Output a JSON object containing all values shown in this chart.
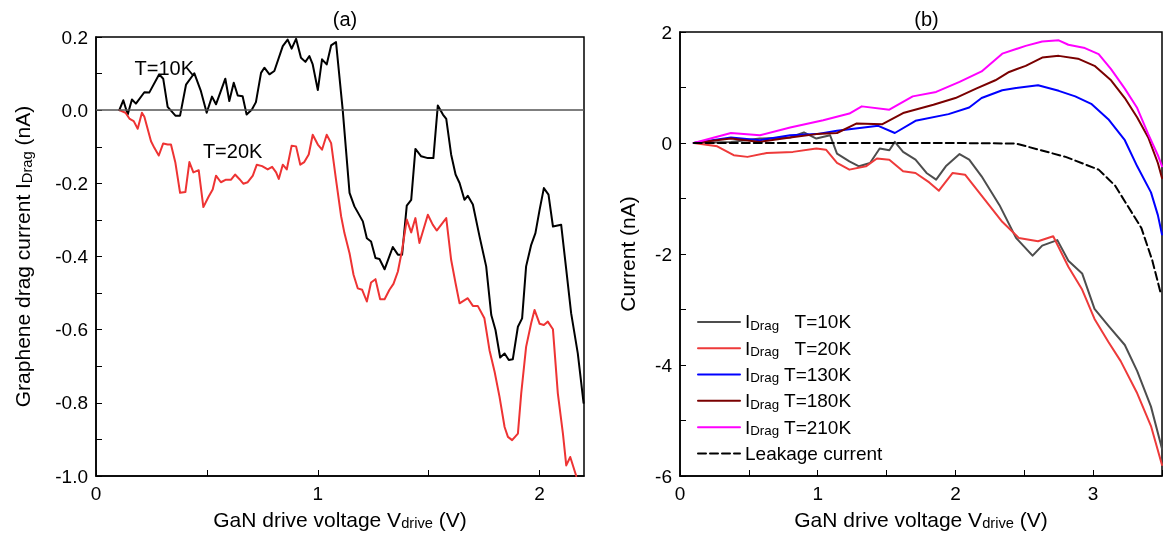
{
  "chart_data": [
    {
      "type": "line",
      "title": "(a)",
      "xlabel": "GaN drive voltage V$_{drive}$ (V)",
      "ylabel": "Graphene drag current I$_{Drag}$ (nA)",
      "xlim": [
        0,
        2.2
      ],
      "xticks": [
        0,
        {
          "value": 0.5,
          "label": null
        },
        1,
        {
          "value": 1.5,
          "label": null
        },
        2
      ],
      "ylim": [
        -1,
        0.2
      ],
      "yticks": [
        {
          "value": -1,
          "label": "-1.0"
        },
        {
          "value": -0.9,
          "label": null
        },
        -0.8,
        {
          "value": -0.7,
          "label": null
        },
        -0.6,
        {
          "value": -0.5,
          "label": null
        },
        -0.4,
        {
          "value": -0.3,
          "label": null
        },
        -0.2,
        {
          "value": -0.1,
          "label": null
        },
        {
          "value": 0,
          "label": "0.0"
        },
        {
          "value": 0.1,
          "label": null
        },
        0.2
      ],
      "grid": false,
      "marker": "none",
      "line_style": "solid",
      "ref_lines": [
        {
          "axis": "y",
          "value": 0,
          "color": "#555555"
        }
      ],
      "annotations": [
        "T=10K",
        "T=20K"
      ],
      "series": [
        {
          "color": "#000000",
          "x": [
            0.105,
            0.123,
            0.143,
            0.162,
            0.18,
            0.218,
            0.24,
            0.285,
            0.303,
            0.323,
            0.358,
            0.379,
            0.406,
            0.443,
            0.473,
            0.499,
            0.523,
            0.541,
            0.583,
            0.601,
            0.621,
            0.639,
            0.661,
            0.679,
            0.703,
            0.721,
            0.744,
            0.759,
            0.782,
            0.804,
            0.842,
            0.864,
            0.882,
            0.902,
            0.924,
            0.944,
            0.962,
            0.977,
            1.0,
            1.019,
            1.04,
            1.06,
            1.082,
            1.112,
            1.143,
            1.165,
            1.203,
            1.221,
            1.24,
            1.26,
            1.278,
            1.301,
            1.338,
            1.361,
            1.38,
            1.401,
            1.421,
            1.44,
            1.466,
            1.496,
            1.521,
            1.541,
            1.564,
            1.579,
            1.601,
            1.621,
            1.639,
            1.661,
            1.676,
            1.699,
            1.729,
            1.759,
            1.782,
            1.801,
            1.822,
            1.842,
            1.861,
            1.879,
            1.902,
            1.921,
            1.939,
            1.962,
            1.981,
            2.0,
            2.019,
            2.04,
            2.06,
            2.097,
            2.12,
            2.142,
            2.172,
            2.198
          ],
          "values": [
            0,
            0.027,
            -0.012,
            0.029,
            0.018,
            0.049,
            0.048,
            0.098,
            0.086,
            0.009,
            -0.015,
            -0.015,
            0.07,
            0.101,
            0.052,
            -0.007,
            0.037,
            0.016,
            0.086,
            0.025,
            0.075,
            0.04,
            0.038,
            -0.012,
            0.002,
            0.022,
            0.102,
            0.116,
            0.098,
            0.107,
            0.175,
            0.193,
            0.168,
            0.195,
            0.143,
            0.132,
            0.148,
            0.125,
            0.055,
            0.139,
            0.125,
            0.177,
            0.186,
            0.002,
            -0.226,
            -0.263,
            -0.304,
            -0.35,
            -0.359,
            -0.404,
            -0.407,
            -0.435,
            -0.374,
            -0.395,
            -0.395,
            -0.261,
            -0.245,
            -0.106,
            -0.126,
            -0.131,
            -0.131,
            0.013,
            -0.012,
            -0.024,
            -0.121,
            -0.176,
            -0.199,
            -0.245,
            -0.234,
            -0.258,
            -0.345,
            -0.427,
            -0.56,
            -0.601,
            -0.676,
            -0.665,
            -0.683,
            -0.681,
            -0.592,
            -0.569,
            -0.427,
            -0.368,
            -0.336,
            -0.272,
            -0.213,
            -0.231,
            -0.318,
            -0.313,
            -0.436,
            -0.555,
            -0.665,
            -0.8
          ]
        },
        {
          "color": "#ee3333",
          "x": [
            0.105,
            0.133,
            0.152,
            0.17,
            0.188,
            0.207,
            0.218,
            0.248,
            0.263,
            0.283,
            0.303,
            0.323,
            0.338,
            0.358,
            0.379,
            0.403,
            0.421,
            0.439,
            0.463,
            0.484,
            0.508,
            0.526,
            0.541,
            0.563,
            0.586,
            0.609,
            0.627,
            0.646,
            0.664,
            0.684,
            0.707,
            0.725,
            0.749,
            0.774,
            0.794,
            0.812,
            0.824,
            0.842,
            0.86,
            0.882,
            0.902,
            0.921,
            0.939,
            0.959,
            0.977,
            1.0,
            1.019,
            1.04,
            1.06,
            1.082,
            1.105,
            1.12,
            1.143,
            1.161,
            1.18,
            1.2,
            1.221,
            1.24,
            1.26,
            1.281,
            1.301,
            1.323,
            1.341,
            1.361,
            1.38,
            1.401,
            1.421,
            1.44,
            1.458,
            1.496,
            1.518,
            1.536,
            1.579,
            1.601,
            1.621,
            1.639,
            1.676,
            1.699,
            1.721,
            1.751,
            1.774,
            1.797,
            1.819,
            1.842,
            1.857,
            1.876,
            1.902,
            1.917,
            1.939,
            1.962,
            1.977,
            2.0,
            2.019,
            2.037,
            2.06,
            2.082,
            2.105,
            2.12,
            2.138,
            2.165
          ],
          "values": [
            0,
            -0.007,
            -0.024,
            -0.03,
            -0.051,
            -0.007,
            -0.018,
            -0.085,
            -0.103,
            -0.124,
            -0.091,
            -0.094,
            -0.094,
            -0.144,
            -0.226,
            -0.224,
            -0.142,
            -0.17,
            -0.164,
            -0.265,
            -0.236,
            -0.217,
            -0.179,
            -0.197,
            -0.19,
            -0.19,
            -0.176,
            -0.188,
            -0.201,
            -0.197,
            -0.179,
            -0.149,
            -0.153,
            -0.162,
            -0.155,
            -0.17,
            -0.188,
            -0.149,
            -0.162,
            -0.097,
            -0.099,
            -0.149,
            -0.142,
            -0.121,
            -0.067,
            -0.094,
            -0.108,
            -0.067,
            -0.09,
            -0.19,
            -0.29,
            -0.336,
            -0.391,
            -0.45,
            -0.487,
            -0.491,
            -0.523,
            -0.471,
            -0.462,
            -0.517,
            -0.517,
            -0.491,
            -0.475,
            -0.441,
            -0.382,
            -0.299,
            -0.334,
            -0.295,
            -0.363,
            -0.286,
            -0.313,
            -0.329,
            -0.295,
            -0.409,
            -0.473,
            -0.528,
            -0.514,
            -0.535,
            -0.535,
            -0.569,
            -0.656,
            -0.715,
            -0.783,
            -0.866,
            -0.893,
            -0.902,
            -0.884,
            -0.774,
            -0.647,
            -0.582,
            -0.546,
            -0.584,
            -0.587,
            -0.578,
            -0.599,
            -0.774,
            -0.884,
            -0.971,
            -0.948,
            -1.0
          ]
        }
      ]
    },
    {
      "type": "line",
      "title": "(b)",
      "xlabel": "GaN drive voltage V$_{drive}$ (V)",
      "ylabel": "Current (nA)",
      "xlim": [
        0,
        3.5
      ],
      "xticks": [
        0,
        {
          "value": 0.5,
          "label": null
        },
        1,
        {
          "value": 1.5,
          "label": null
        },
        2,
        {
          "value": 2.5,
          "label": null
        },
        3,
        {
          "value": 3.5,
          "label": null
        }
      ],
      "ylim": [
        -6,
        2
      ],
      "yticks": [
        -6,
        {
          "value": -5,
          "label": null
        },
        -4,
        {
          "value": -3,
          "label": null
        },
        -2,
        {
          "value": -1,
          "label": null
        },
        0,
        {
          "value": 1,
          "label": null
        },
        2
      ],
      "grid": false,
      "marker": "none",
      "line_style": "solid",
      "legend": "bottom left",
      "series": [
        {
          "name": "I$_{Drag}$   T=10K",
          "color": "#4d4d4d",
          "x": [
            0.1,
            0.37,
            0.58,
            0.8,
            0.9,
            0.99,
            1.09,
            1.14,
            1.23,
            1.3,
            1.38,
            1.45,
            1.52,
            1.56,
            1.62,
            1.71,
            1.79,
            1.86,
            1.93,
            2.03,
            2.1,
            2.19,
            2.32,
            2.44,
            2.56,
            2.63,
            2.74,
            2.82,
            2.92,
            3.01,
            3.11,
            3.23,
            3.32,
            3.42,
            3.5
          ],
          "values": [
            0,
            0.02,
            0.08,
            0.1,
            0.19,
            0.08,
            0.14,
            -0.19,
            -0.33,
            -0.42,
            -0.36,
            -0.1,
            -0.13,
            0.02,
            -0.16,
            -0.3,
            -0.54,
            -0.66,
            -0.42,
            -0.2,
            -0.3,
            -0.6,
            -1.12,
            -1.71,
            -2.03,
            -1.85,
            -1.75,
            -2.12,
            -2.35,
            -2.99,
            -3.29,
            -3.64,
            -4.11,
            -4.75,
            -5.51
          ]
        },
        {
          "name": "I$_{Drag}$   T=20K",
          "color": "#ee3a3a",
          "x": [
            0.1,
            0.27,
            0.39,
            0.49,
            0.63,
            0.82,
            0.99,
            1.06,
            1.14,
            1.23,
            1.35,
            1.43,
            1.52,
            1.62,
            1.71,
            1.81,
            1.88,
            1.98,
            2.07,
            2.19,
            2.34,
            2.46,
            2.6,
            2.71,
            2.82,
            2.92,
            3.01,
            3.11,
            3.2,
            3.32,
            3.42,
            3.5
          ],
          "values": [
            0,
            -0.06,
            -0.22,
            -0.25,
            -0.18,
            -0.16,
            -0.1,
            -0.12,
            -0.36,
            -0.48,
            -0.42,
            -0.28,
            -0.3,
            -0.51,
            -0.54,
            -0.71,
            -0.86,
            -0.54,
            -0.57,
            -0.95,
            -1.42,
            -1.71,
            -1.77,
            -1.68,
            -2.23,
            -2.64,
            -3.17,
            -3.58,
            -3.93,
            -4.51,
            -5.1,
            -5.8
          ]
        },
        {
          "name": "I$_{Drag}$ T=130K",
          "color": "#0000ff",
          "x": [
            0.1,
            0.37,
            0.58,
            0.8,
            0.99,
            1.14,
            1.44,
            1.56,
            1.71,
            1.95,
            2.1,
            2.19,
            2.34,
            2.44,
            2.6,
            2.75,
            2.87,
            2.99,
            3.11,
            3.23,
            3.32,
            3.42,
            3.47,
            3.5
          ],
          "values": [
            0,
            0.1,
            0.05,
            0.14,
            0.16,
            0.22,
            0.31,
            0.18,
            0.4,
            0.52,
            0.64,
            0.81,
            0.95,
            0.99,
            1.04,
            0.94,
            0.84,
            0.7,
            0.43,
            0.05,
            -0.42,
            -0.89,
            -1.3,
            -1.65
          ]
        },
        {
          "name": "I$_{Drag}$ T=180K",
          "color": "#7a0000",
          "x": [
            0.1,
            0.37,
            0.58,
            0.8,
            0.99,
            1.14,
            1.28,
            1.47,
            1.62,
            1.84,
            2.0,
            2.15,
            2.29,
            2.39,
            2.51,
            2.63,
            2.75,
            2.89,
            3.01,
            3.13,
            3.23,
            3.32,
            3.4,
            3.47,
            3.5
          ],
          "values": [
            0,
            0.08,
            0.02,
            0.1,
            0.16,
            0.18,
            0.35,
            0.34,
            0.54,
            0.69,
            0.81,
            0.98,
            1.13,
            1.28,
            1.39,
            1.54,
            1.57,
            1.52,
            1.39,
            1.13,
            0.81,
            0.46,
            0.1,
            -0.36,
            -0.63
          ]
        },
        {
          "name": "I$_{Drag}$ T=210K",
          "color": "#ff00ff",
          "x": [
            0.1,
            0.37,
            0.58,
            0.8,
            1.04,
            1.23,
            1.32,
            1.52,
            1.69,
            1.86,
            2.03,
            2.19,
            2.34,
            2.51,
            2.63,
            2.75,
            2.82,
            2.94,
            3.04,
            3.13,
            3.23,
            3.32,
            3.4,
            3.47,
            3.5
          ],
          "values": [
            0,
            0.18,
            0.14,
            0.28,
            0.41,
            0.53,
            0.66,
            0.6,
            0.84,
            0.92,
            1.1,
            1.29,
            1.61,
            1.75,
            1.83,
            1.85,
            1.77,
            1.71,
            1.6,
            1.33,
            0.98,
            0.63,
            0.16,
            -0.22,
            -0.42
          ]
        },
        {
          "name": "Leakage current",
          "color": "#000000",
          "line_style": "dashed",
          "x": [
            0.1,
            1.0,
            2.0,
            2.44,
            2.8,
            3.04,
            3.16,
            3.35,
            3.43,
            3.49
          ],
          "values": [
            0,
            0,
            0,
            -0.01,
            -0.25,
            -0.48,
            -0.77,
            -1.53,
            -2.12,
            -2.7
          ]
        }
      ]
    }
  ]
}
